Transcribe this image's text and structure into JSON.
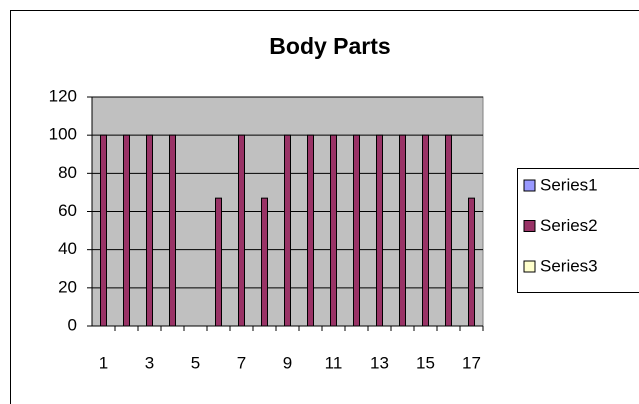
{
  "chart_data": {
    "type": "bar",
    "title": "Body Parts",
    "categories": [
      1,
      null,
      3,
      null,
      5,
      null,
      7,
      null,
      9,
      null,
      11,
      null,
      13,
      null,
      15,
      null,
      17
    ],
    "series": [
      {
        "name": "Series1",
        "color": "#9999ff",
        "values": [
          null,
          null,
          null,
          null,
          null,
          null,
          null,
          null,
          null,
          null,
          null,
          null,
          null,
          null,
          null,
          null,
          null
        ]
      },
      {
        "name": "Series2",
        "color": "#993366",
        "values": [
          100,
          100,
          100,
          100,
          null,
          67,
          100,
          67,
          100,
          100,
          100,
          100,
          100,
          100,
          100,
          100,
          67
        ]
      },
      {
        "name": "Series3",
        "color": "#ffffcc",
        "values": [
          null,
          null,
          null,
          null,
          null,
          null,
          null,
          null,
          null,
          null,
          null,
          null,
          null,
          null,
          null,
          null,
          null
        ]
      }
    ],
    "ylim": [
      0,
      120
    ],
    "yticks": [
      0,
      20,
      40,
      60,
      80,
      100,
      120
    ],
    "grid": true,
    "legend": "right"
  }
}
